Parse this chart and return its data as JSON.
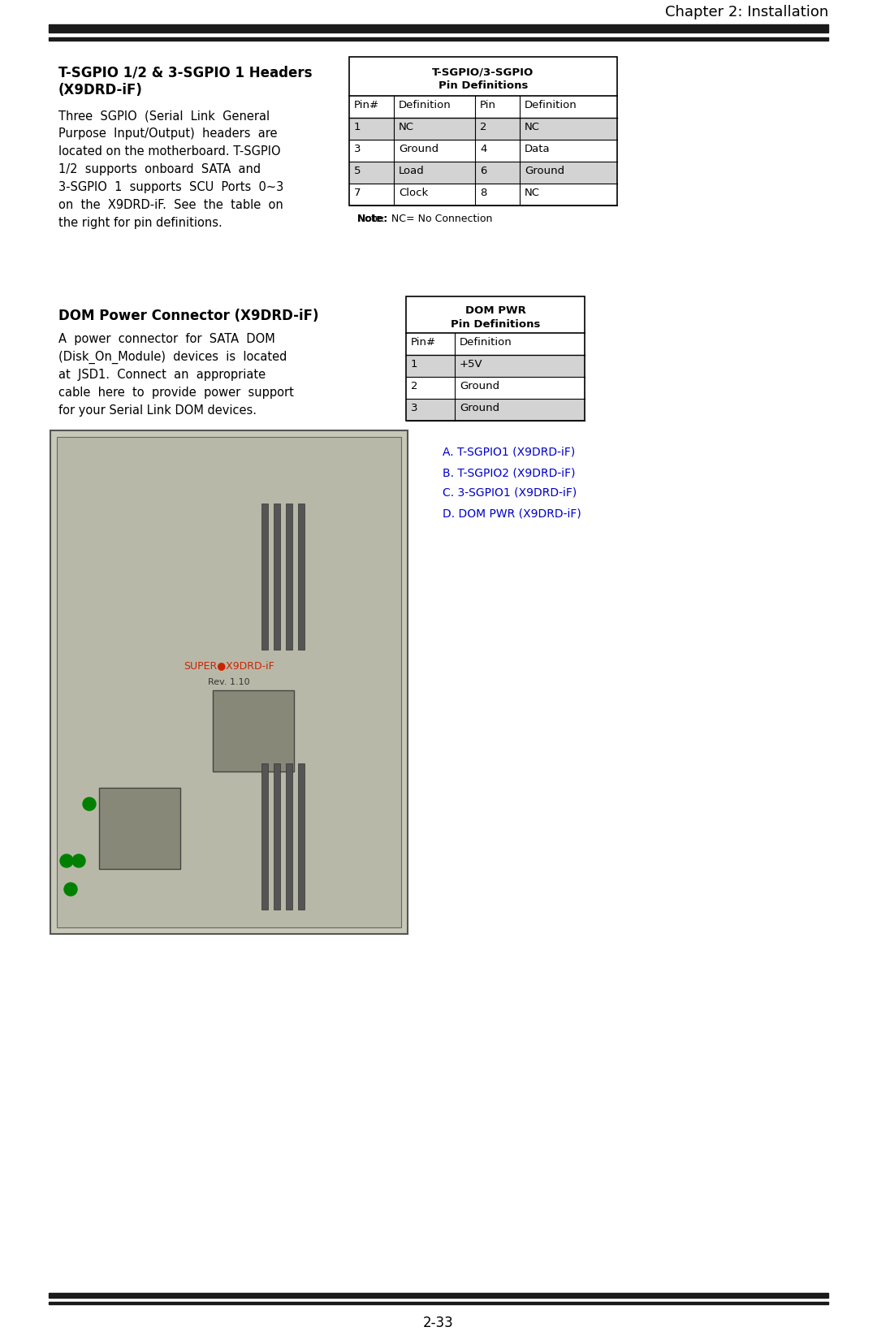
{
  "page_title": "Chapter 2: Installation",
  "page_number": "2-33",
  "section1_title": "T-SGPIO 1/2 & 3-SGPIO 1 Headers\n(X9DRD-iF)",
  "section1_body": "Three  SGPIO  (Serial  Link  General\nPurpose  Input/Output)  headers  are\nlocated on the motherboard. T-SGPIO\n1/2  supports  onboard  SATA  and\n3-SGPIO  1  supports  SCU  Ports  0~3\non  the  X9DRD-iF.  See  the  table  on\nthe right for pin definitions.",
  "table1_title1": "T-SGPIO/3-SGPIO",
  "table1_title2": "Pin Definitions",
  "table1_headers": [
    "Pin#",
    "Definition",
    "Pin",
    "Definition"
  ],
  "table1_rows": [
    [
      "1",
      "NC",
      "2",
      "NC"
    ],
    [
      "3",
      "Ground",
      "4",
      "Data"
    ],
    [
      "5",
      "Load",
      "6",
      "Ground"
    ],
    [
      "7",
      "Clock",
      "8",
      "NC"
    ]
  ],
  "table1_note": "Note:  NC= No Connection",
  "section2_title": "DOM Power Connector (X9DRD-iF)",
  "section2_body": "A  power  connector  for  SATA  DOM\n(Disk_On_Module)  devices  is  located\nat  JSD1.  Connect  an  appropriate\ncable  here  to  provide  power  support\nfor your Serial Link DOM devices.",
  "table2_title1": "DOM PWR",
  "table2_title2": "Pin Definitions",
  "table2_headers": [
    "Pin#",
    "Definition"
  ],
  "table2_rows": [
    [
      "1",
      "+5V"
    ],
    [
      "2",
      "Ground"
    ],
    [
      "3",
      "Ground"
    ]
  ],
  "legend_items": [
    "A. T-SGPIO1 (X9DRD-iF)",
    "B. T-SGPIO2 (X9DRD-iF)",
    "C. 3-SGPIO1 (X9DRD-iF)",
    "D. DOM PWR (X9DRD-iF)"
  ],
  "bg_color": "#ffffff",
  "header_bg": "#d3d3d3",
  "row_alt_bg": "#d3d3d3",
  "row_bg": "#ffffff",
  "table_border": "#000000",
  "text_color": "#000000",
  "top_bar_color": "#1a1a1a",
  "divider_color": "#1a1a1a"
}
